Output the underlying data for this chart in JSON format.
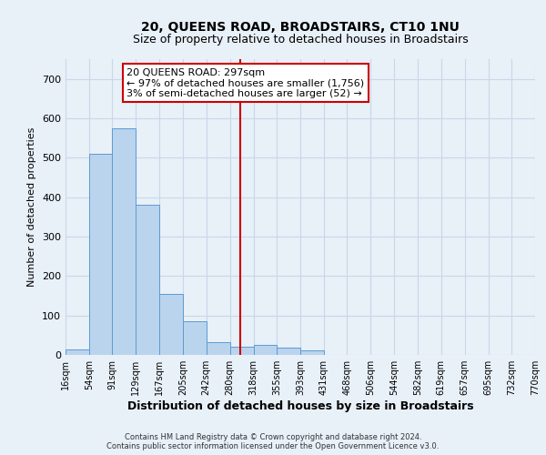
{
  "title": "20, QUEENS ROAD, BROADSTAIRS, CT10 1NU",
  "subtitle": "Size of property relative to detached houses in Broadstairs",
  "xlabel": "Distribution of detached houses by size in Broadstairs",
  "ylabel": "Number of detached properties",
  "bar_edges": [
    16,
    54,
    91,
    129,
    167,
    205,
    242,
    280,
    318,
    355,
    393,
    431,
    468,
    506,
    544,
    582,
    619,
    657,
    695,
    732,
    770
  ],
  "bar_heights": [
    15,
    510,
    575,
    380,
    155,
    85,
    32,
    20,
    25,
    18,
    12,
    0,
    0,
    0,
    0,
    0,
    0,
    0,
    0,
    0
  ],
  "bar_color": "#bad4ed",
  "bar_edge_color": "#5b9bd5",
  "grid_color": "#c8d8e8",
  "background_color": "#e8f0f8",
  "vline_x": 297,
  "vline_color": "#cc0000",
  "annotation_text": "20 QUEENS ROAD: 297sqm\n← 97% of detached houses are smaller (1,756)\n3% of semi-detached houses are larger (52) →",
  "annotation_box_color": "#ffffff",
  "annotation_border_color": "#cc0000",
  "footer_line1": "Contains HM Land Registry data © Crown copyright and database right 2024.",
  "footer_line2": "Contains public sector information licensed under the Open Government Licence v3.0.",
  "tick_labels": [
    "16sqm",
    "54sqm",
    "91sqm",
    "129sqm",
    "167sqm",
    "205sqm",
    "242sqm",
    "280sqm",
    "318sqm",
    "355sqm",
    "393sqm",
    "431sqm",
    "468sqm",
    "506sqm",
    "544sqm",
    "582sqm",
    "619sqm",
    "657sqm",
    "695sqm",
    "732sqm",
    "770sqm"
  ],
  "ylim": [
    0,
    750
  ],
  "yticks": [
    0,
    100,
    200,
    300,
    400,
    500,
    600,
    700
  ],
  "title_fontsize": 10,
  "subtitle_fontsize": 9,
  "xlabel_fontsize": 9,
  "ylabel_fontsize": 8,
  "tick_fontsize": 7,
  "annotation_fontsize": 8,
  "footer_fontsize": 6
}
